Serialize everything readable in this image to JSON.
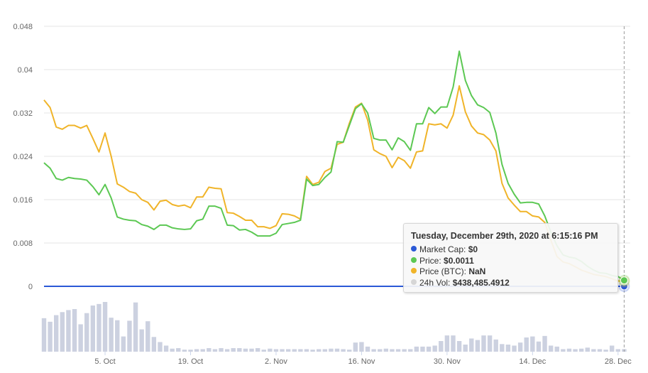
{
  "chart_data": {
    "type": "line",
    "title": "",
    "xlabel": "",
    "ylabel": "",
    "ylim": [
      0,
      0.048
    ],
    "yticks": [
      "0",
      "0.008",
      "0.016",
      "0.024",
      "0.032",
      "0.04",
      "0.048"
    ],
    "xticks": [
      {
        "date": "2020-10-05",
        "label": "5. Oct"
      },
      {
        "date": "2020-10-19",
        "label": "19. Oct"
      },
      {
        "date": "2020-11-02",
        "label": "2. Nov"
      },
      {
        "date": "2020-11-16",
        "label": "16. Nov"
      },
      {
        "date": "2020-11-30",
        "label": "30. Nov"
      },
      {
        "date": "2020-12-14",
        "label": "14. Dec"
      },
      {
        "date": "2020-12-28",
        "label": "28. Dec"
      }
    ],
    "xrange": [
      "2020-09-25",
      "2020-12-30"
    ],
    "grid": true,
    "legend": "none",
    "colors": {
      "market_cap": "#2b59d6",
      "price": "#5cc853",
      "price_btc": "#f0b429",
      "volume": "#ccd1e0",
      "grid": "#e6e6e6",
      "crosshair": "#999999"
    },
    "series": [
      {
        "key": "price",
        "dates": [
          "2020-09-25",
          "2020-09-26",
          "2020-09-27",
          "2020-09-28",
          "2020-09-29",
          "2020-09-30",
          "2020-10-01",
          "2020-10-02",
          "2020-10-03",
          "2020-10-04",
          "2020-10-05",
          "2020-10-06",
          "2020-10-07",
          "2020-10-08",
          "2020-10-09",
          "2020-10-10",
          "2020-10-11",
          "2020-10-12",
          "2020-10-13",
          "2020-10-14",
          "2020-10-15",
          "2020-10-16",
          "2020-10-17",
          "2020-10-18",
          "2020-10-19",
          "2020-10-20",
          "2020-10-21",
          "2020-10-22",
          "2020-10-23",
          "2020-10-24",
          "2020-10-25",
          "2020-10-26",
          "2020-10-27",
          "2020-10-28",
          "2020-10-29",
          "2020-10-30",
          "2020-10-31",
          "2020-11-01",
          "2020-11-02",
          "2020-11-03",
          "2020-11-04",
          "2020-11-05",
          "2020-11-06",
          "2020-11-07",
          "2020-11-08",
          "2020-11-09",
          "2020-11-10",
          "2020-11-11",
          "2020-11-12",
          "2020-11-13",
          "2020-11-14",
          "2020-11-15",
          "2020-11-16",
          "2020-11-17",
          "2020-11-18",
          "2020-11-19",
          "2020-11-20",
          "2020-11-21",
          "2020-11-22",
          "2020-11-23",
          "2020-11-24",
          "2020-11-25",
          "2020-11-26",
          "2020-11-27",
          "2020-11-28",
          "2020-11-29",
          "2020-11-30",
          "2020-12-01",
          "2020-12-02",
          "2020-12-03",
          "2020-12-04",
          "2020-12-05",
          "2020-12-06",
          "2020-12-07",
          "2020-12-08",
          "2020-12-09",
          "2020-12-10",
          "2020-12-11",
          "2020-12-12",
          "2020-12-13",
          "2020-12-14",
          "2020-12-15",
          "2020-12-16",
          "2020-12-17",
          "2020-12-18",
          "2020-12-19",
          "2020-12-20",
          "2020-12-21",
          "2020-12-22",
          "2020-12-23",
          "2020-12-24",
          "2020-12-25",
          "2020-12-26",
          "2020-12-27",
          "2020-12-28",
          "2020-12-29"
        ],
        "values": [
          0.0228,
          0.0218,
          0.0199,
          0.0196,
          0.0201,
          0.0199,
          0.0198,
          0.0196,
          0.0184,
          0.0169,
          0.0188,
          0.0163,
          0.0128,
          0.0124,
          0.0122,
          0.0121,
          0.0114,
          0.0111,
          0.0105,
          0.0113,
          0.0113,
          0.0108,
          0.0106,
          0.0105,
          0.0106,
          0.0121,
          0.0124,
          0.0148,
          0.0148,
          0.0144,
          0.0113,
          0.0112,
          0.0104,
          0.0105,
          0.01,
          0.0093,
          0.0093,
          0.0093,
          0.0098,
          0.0114,
          0.0116,
          0.0118,
          0.0122,
          0.0198,
          0.0186,
          0.0188,
          0.0201,
          0.0211,
          0.0267,
          0.0266,
          0.0297,
          0.0328,
          0.0337,
          0.032,
          0.0273,
          0.027,
          0.027,
          0.0252,
          0.0274,
          0.0267,
          0.0251,
          0.03,
          0.03,
          0.033,
          0.0319,
          0.0331,
          0.0331,
          0.0368,
          0.0434,
          0.038,
          0.0352,
          0.0335,
          0.033,
          0.0321,
          0.0283,
          0.0225,
          0.019,
          0.017,
          0.0154,
          0.0155,
          0.0155,
          0.0152,
          0.013,
          0.01,
          0.0075,
          0.0058,
          0.0054,
          0.0052,
          0.0046,
          0.0037,
          0.003,
          0.0025,
          0.0024,
          0.002,
          0.0018,
          0.0011
        ]
      },
      {
        "key": "price_btc",
        "dates": [
          "2020-09-25",
          "2020-09-26",
          "2020-09-27",
          "2020-09-28",
          "2020-09-29",
          "2020-09-30",
          "2020-10-01",
          "2020-10-02",
          "2020-10-03",
          "2020-10-04",
          "2020-10-05",
          "2020-10-06",
          "2020-10-07",
          "2020-10-08",
          "2020-10-09",
          "2020-10-10",
          "2020-10-11",
          "2020-10-12",
          "2020-10-13",
          "2020-10-14",
          "2020-10-15",
          "2020-10-16",
          "2020-10-17",
          "2020-10-18",
          "2020-10-19",
          "2020-10-20",
          "2020-10-21",
          "2020-10-22",
          "2020-10-23",
          "2020-10-24",
          "2020-10-25",
          "2020-10-26",
          "2020-10-27",
          "2020-10-28",
          "2020-10-29",
          "2020-10-30",
          "2020-10-31",
          "2020-11-01",
          "2020-11-02",
          "2020-11-03",
          "2020-11-04",
          "2020-11-05",
          "2020-11-06",
          "2020-11-07",
          "2020-11-08",
          "2020-11-09",
          "2020-11-10",
          "2020-11-11",
          "2020-11-12",
          "2020-11-13",
          "2020-11-14",
          "2020-11-15",
          "2020-11-16",
          "2020-11-17",
          "2020-11-18",
          "2020-11-19",
          "2020-11-20",
          "2020-11-21",
          "2020-11-22",
          "2020-11-23",
          "2020-11-24",
          "2020-11-25",
          "2020-11-26",
          "2020-11-27",
          "2020-11-28",
          "2020-11-29",
          "2020-11-30",
          "2020-12-01",
          "2020-12-02",
          "2020-12-03",
          "2020-12-04",
          "2020-12-05",
          "2020-12-06",
          "2020-12-07",
          "2020-12-08",
          "2020-12-09",
          "2020-12-10",
          "2020-12-11",
          "2020-12-12",
          "2020-12-13",
          "2020-12-14",
          "2020-12-15",
          "2020-12-16",
          "2020-12-17",
          "2020-12-18",
          "2020-12-19",
          "2020-12-20",
          "2020-12-21",
          "2020-12-22",
          "2020-12-23",
          "2020-12-24",
          "2020-12-25",
          "2020-12-26",
          "2020-12-27",
          "2020-12-28",
          "2020-12-29"
        ],
        "values": [
          0.0344,
          0.033,
          0.0294,
          0.029,
          0.0297,
          0.0297,
          0.0292,
          0.0297,
          0.0273,
          0.0248,
          0.0283,
          0.024,
          0.0189,
          0.0183,
          0.0175,
          0.0172,
          0.016,
          0.0155,
          0.0141,
          0.0157,
          0.0159,
          0.0151,
          0.0148,
          0.015,
          0.0145,
          0.0165,
          0.0165,
          0.0183,
          0.0181,
          0.018,
          0.0136,
          0.0135,
          0.0129,
          0.0122,
          0.0122,
          0.011,
          0.011,
          0.0107,
          0.0112,
          0.0134,
          0.0133,
          0.013,
          0.0124,
          0.0203,
          0.0188,
          0.0192,
          0.0212,
          0.0218,
          0.0262,
          0.0266,
          0.0301,
          0.0331,
          0.0338,
          0.0307,
          0.0252,
          0.0245,
          0.024,
          0.0219,
          0.0238,
          0.0232,
          0.0218,
          0.0248,
          0.025,
          0.03,
          0.0298,
          0.03,
          0.0292,
          0.0316,
          0.037,
          0.0322,
          0.0296,
          0.0283,
          0.028,
          0.027,
          0.025,
          0.019,
          0.0163,
          0.015,
          0.0138,
          0.0138,
          0.013,
          0.0128,
          0.0118,
          0.0085,
          0.0055,
          0.0045,
          0.0042,
          0.0036,
          0.003,
          0.0026,
          0.0022,
          0.002,
          0.0018,
          0.0014,
          0.001,
          0.0009
        ]
      },
      {
        "key": "market_cap",
        "dates": [
          "2020-09-25",
          "2020-12-29"
        ],
        "values": [
          0,
          0
        ]
      }
    ],
    "volume": {
      "dates": [
        "2020-09-25",
        "2020-09-26",
        "2020-09-27",
        "2020-09-28",
        "2020-09-29",
        "2020-09-30",
        "2020-10-01",
        "2020-10-02",
        "2020-10-03",
        "2020-10-04",
        "2020-10-05",
        "2020-10-06",
        "2020-10-07",
        "2020-10-08",
        "2020-10-09",
        "2020-10-10",
        "2020-10-11",
        "2020-10-12",
        "2020-10-13",
        "2020-10-14",
        "2020-10-15",
        "2020-10-16",
        "2020-10-17",
        "2020-10-18",
        "2020-10-19",
        "2020-10-20",
        "2020-10-21",
        "2020-10-22",
        "2020-10-23",
        "2020-10-24",
        "2020-10-25",
        "2020-10-26",
        "2020-10-27",
        "2020-10-28",
        "2020-10-29",
        "2020-10-30",
        "2020-10-31",
        "2020-11-01",
        "2020-11-02",
        "2020-11-03",
        "2020-11-04",
        "2020-11-05",
        "2020-11-06",
        "2020-11-07",
        "2020-11-08",
        "2020-11-09",
        "2020-11-10",
        "2020-11-11",
        "2020-11-12",
        "2020-11-13",
        "2020-11-14",
        "2020-11-15",
        "2020-11-16",
        "2020-11-17",
        "2020-11-18",
        "2020-11-19",
        "2020-11-20",
        "2020-11-21",
        "2020-11-22",
        "2020-11-23",
        "2020-11-24",
        "2020-11-25",
        "2020-11-26",
        "2020-11-27",
        "2020-11-28",
        "2020-11-29",
        "2020-11-30",
        "2020-12-01",
        "2020-12-02",
        "2020-12-03",
        "2020-12-04",
        "2020-12-05",
        "2020-12-06",
        "2020-12-07",
        "2020-12-08",
        "2020-12-09",
        "2020-12-10",
        "2020-12-11",
        "2020-12-12",
        "2020-12-13",
        "2020-12-14",
        "2020-12-15",
        "2020-12-16",
        "2020-12-17",
        "2020-12-18",
        "2020-12-19",
        "2020-12-20",
        "2020-12-21",
        "2020-12-22",
        "2020-12-23",
        "2020-12-24",
        "2020-12-25",
        "2020-12-26",
        "2020-12-27",
        "2020-12-28",
        "2020-12-29"
      ],
      "values": [
        0.66,
        0.59,
        0.72,
        0.78,
        0.82,
        0.84,
        0.54,
        0.76,
        0.91,
        0.94,
        0.98,
        0.67,
        0.62,
        0.3,
        0.61,
        0.97,
        0.44,
        0.6,
        0.29,
        0.19,
        0.12,
        0.06,
        0.07,
        0.04,
        0.04,
        0.05,
        0.05,
        0.07,
        0.05,
        0.07,
        0.05,
        0.07,
        0.07,
        0.06,
        0.06,
        0.07,
        0.04,
        0.06,
        0.05,
        0.05,
        0.05,
        0.05,
        0.05,
        0.05,
        0.04,
        0.05,
        0.05,
        0.06,
        0.06,
        0.05,
        0.04,
        0.18,
        0.19,
        0.1,
        0.05,
        0.05,
        0.06,
        0.05,
        0.05,
        0.05,
        0.05,
        0.1,
        0.1,
        0.1,
        0.12,
        0.21,
        0.32,
        0.32,
        0.21,
        0.14,
        0.26,
        0.23,
        0.32,
        0.32,
        0.24,
        0.15,
        0.14,
        0.12,
        0.18,
        0.28,
        0.3,
        0.2,
        0.31,
        0.12,
        0.1,
        0.05,
        0.06,
        0.05,
        0.06,
        0.08,
        0.05,
        0.05,
        0.04,
        0.12,
        0.05,
        0.05
      ]
    },
    "hover_index": 95
  },
  "tooltip": {
    "title": "Tuesday, December 29th, 2020 at 6:15:16 PM",
    "rows": [
      {
        "label": "Market Cap:",
        "value": "$0",
        "color": "#2b59d6"
      },
      {
        "label": "Price:",
        "value": "$0.0011",
        "color": "#5cc853"
      },
      {
        "label": "Price (BTC):",
        "value": "NaN",
        "color": "#f0b429"
      },
      {
        "label": "24h Vol:",
        "value": "$438,485.4912",
        "color": "#d6d6d6"
      }
    ]
  }
}
